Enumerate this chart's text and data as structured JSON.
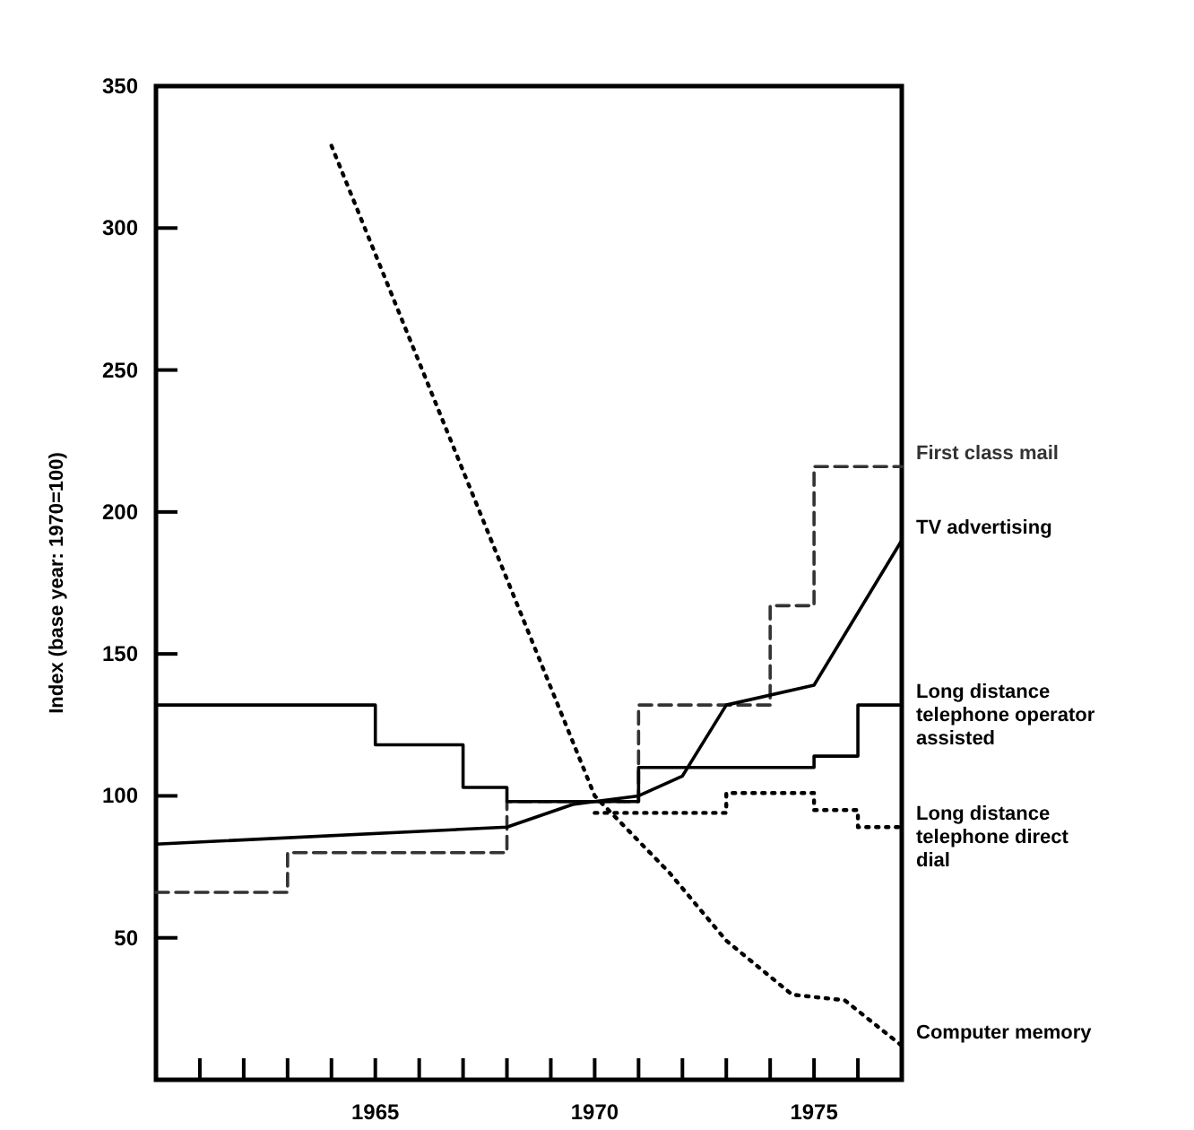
{
  "chart_data": {
    "type": "line",
    "ylabel": "Index (base year: 1970=100)",
    "xlim": [
      1960,
      1977
    ],
    "ylim": [
      0,
      350
    ],
    "xticks": [
      {
        "value": 1961,
        "label": null
      },
      {
        "value": 1962,
        "label": null
      },
      {
        "value": 1963,
        "label": null
      },
      {
        "value": 1964,
        "label": null
      },
      1965,
      {
        "value": 1966,
        "label": null
      },
      {
        "value": 1967,
        "label": null
      },
      {
        "value": 1968,
        "label": null
      },
      {
        "value": 1969,
        "label": null
      },
      1970,
      {
        "value": 1971,
        "label": null
      },
      {
        "value": 1972,
        "label": null
      },
      {
        "value": 1973,
        "label": null
      },
      {
        "value": 1974,
        "label": null
      },
      1975,
      {
        "value": 1976,
        "label": null
      }
    ],
    "yticks": [
      50,
      100,
      150,
      200,
      250,
      300,
      350
    ],
    "grid": false,
    "legend": false,
    "marker": "none",
    "series": [
      {
        "name": "First class mail",
        "type": "step",
        "color": "#333333",
        "line_style": "dashed",
        "x": [
          1960,
          1963,
          1968,
          1971,
          1974,
          1975,
          1977
        ],
        "values": [
          66,
          80,
          98,
          132,
          167,
          216,
          216
        ]
      },
      {
        "name": "TV advertising",
        "color": "#000000",
        "line_style": "solid",
        "x": [
          1960,
          1968,
          1969.5,
          1970,
          1971,
          1972,
          1973,
          1975,
          1977
        ],
        "values": [
          83,
          89,
          97,
          98,
          100,
          107,
          132,
          139,
          190
        ]
      },
      {
        "name": "Long distance telephone operator assisted",
        "type": "step",
        "color": "#000000",
        "line_style": "solid",
        "x": [
          1960,
          1965,
          1967,
          1968,
          1971,
          1975,
          1976,
          1977
        ],
        "values": [
          132,
          118,
          103,
          98,
          110,
          114,
          132,
          132
        ]
      },
      {
        "name": "Long distance telephone direct dial",
        "type": "step",
        "color": "#000000",
        "line_style": "dotted",
        "x": [
          1970,
          1973,
          1975,
          1976,
          1977
        ],
        "values": [
          94,
          101,
          95,
          89,
          89
        ]
      },
      {
        "name": "Computer memory",
        "color": "#000000",
        "line_style": "dotted",
        "x": [
          1964,
          1970,
          1971.7,
          1973,
          1974.5,
          1975.7,
          1977
        ],
        "values": [
          329,
          100,
          73,
          49,
          30,
          28,
          12
        ]
      }
    ]
  }
}
